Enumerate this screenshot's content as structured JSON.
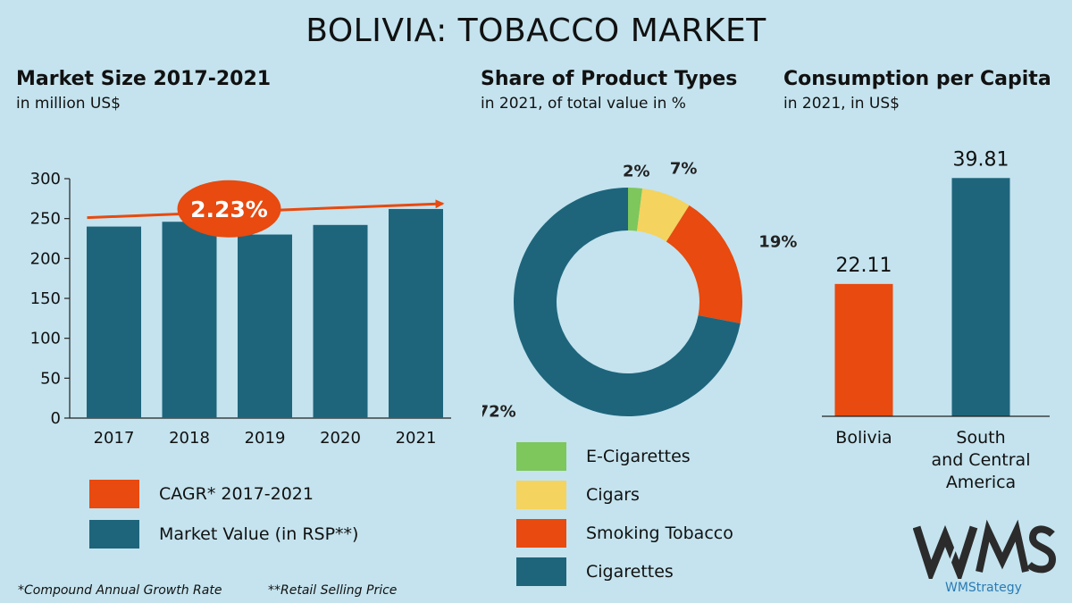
{
  "title": "BOLIVIA: TOBACCO MARKET",
  "sections": {
    "market_size": {
      "title": "Market Size 2017-2021",
      "subtitle": "in million US$"
    },
    "share": {
      "title": "Share of Product Types",
      "subtitle": "in 2021, of total value in %"
    },
    "per_capita": {
      "title": "Consumption per Capita",
      "subtitle": "in 2021, in US$"
    }
  },
  "colors": {
    "teal": "#1e657c",
    "orange": "#e84a0f",
    "green": "#7dc75c",
    "yellow": "#f4d35e",
    "bg": "#c4e3ee"
  },
  "market_legend": [
    {
      "label": "CAGR* 2017-2021",
      "color": "#e84a0f"
    },
    {
      "label": "Market Value (in RSP**)",
      "color": "#1e657c"
    }
  ],
  "footnotes": {
    "cagr": "*Compound Annual Growth Rate",
    "rsp": "**Retail Selling Price"
  },
  "logo": {
    "name": "WMStrategy",
    "icon": "wms-logo-icon"
  },
  "chart_data": [
    {
      "type": "bar",
      "title": "Market Size 2017-2021",
      "subtitle": "in million US$",
      "categories": [
        "2017",
        "2018",
        "2019",
        "2020",
        "2021"
      ],
      "values": [
        240,
        246,
        230,
        242,
        262
      ],
      "ylim": [
        0,
        300
      ],
      "yticks": [
        0,
        50,
        100,
        150,
        200,
        250,
        300
      ],
      "annotation": {
        "label": "2.23%",
        "meaning": "CAGR* 2017-2021"
      },
      "grid": false
    },
    {
      "type": "pie",
      "style": "donut",
      "title": "Share of Product Types",
      "subtitle": "in 2021, of total value in %",
      "slices": [
        {
          "name": "E-Cigarettes",
          "value": 2,
          "label": "2%",
          "color": "#7dc75c"
        },
        {
          "name": "Cigars",
          "value": 7,
          "label": "7%",
          "color": "#f4d35e"
        },
        {
          "name": "Smoking Tobacco",
          "value": 19,
          "label": "19%",
          "color": "#e84a0f"
        },
        {
          "name": "Cigarettes",
          "value": 72,
          "label": "72%",
          "color": "#1e657c"
        }
      ],
      "legend_placement": "bottom"
    },
    {
      "type": "bar",
      "title": "Consumption per Capita",
      "subtitle": "in 2021, in US$",
      "categories": [
        "Bolivia",
        "South and Central America"
      ],
      "category_lines": [
        [
          "Bolivia"
        ],
        [
          "South",
          "and Central",
          "America"
        ]
      ],
      "values": [
        22.11,
        39.81
      ],
      "labels": [
        "22.11",
        "39.81"
      ],
      "colors": [
        "#e84a0f",
        "#1e657c"
      ],
      "ylim": [
        0,
        40
      ]
    }
  ]
}
